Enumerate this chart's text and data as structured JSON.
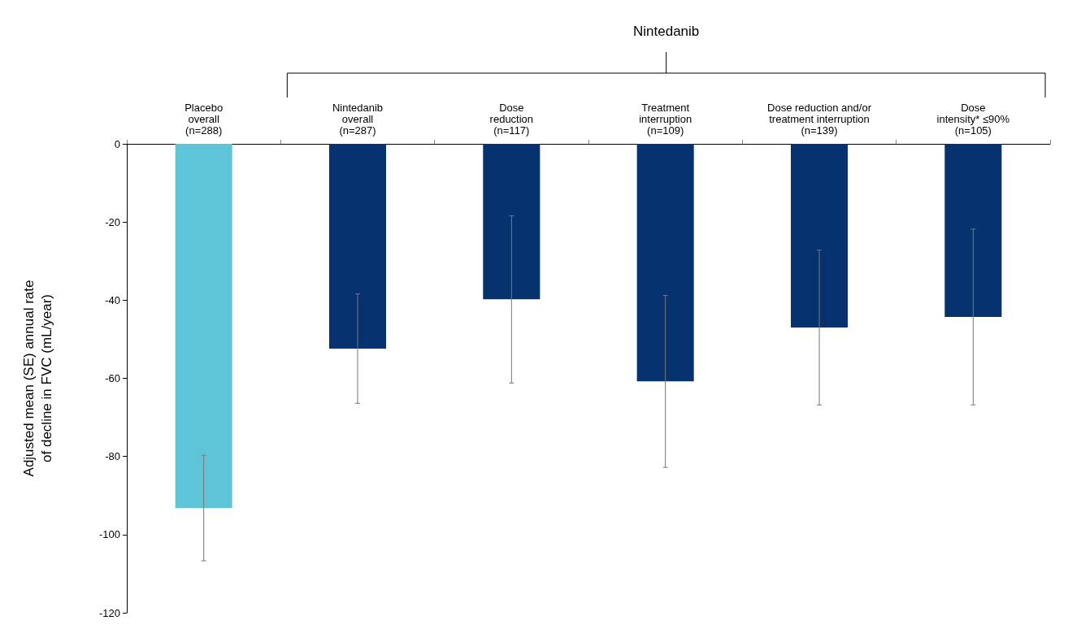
{
  "chart_data": {
    "type": "bar",
    "ylabel": "Adjusted mean (SE) annual rate\nof decline in FVC (mL/year)",
    "categories": [
      "Placebo\noverall\n(n=288)",
      "Nintedanib\noverall\n(n=287)",
      "Dose\nreduction\n(n=117)",
      "Treatment\ninterruption\n(n=109)",
      "Dose reduction and/or\ntreatment interruption\n(n=139)",
      "Dose\nintensity* ≤90%\n(n=105)"
    ],
    "values": [
      -93.2,
      -52.4,
      -39.8,
      -60.8,
      -47,
      -44.3
    ],
    "errors": [
      13.5,
      14,
      21.4,
      22,
      19.8,
      22.5
    ],
    "colors": [
      "#5ec5d8",
      "#06336f",
      "#06336f",
      "#06336f",
      "#06336f",
      "#06336f"
    ],
    "ylim": [
      -120,
      0
    ],
    "yticks": [
      0,
      -20,
      -40,
      -60,
      -80,
      -100,
      -120
    ],
    "annotations": [
      "Nintedanib"
    ]
  }
}
